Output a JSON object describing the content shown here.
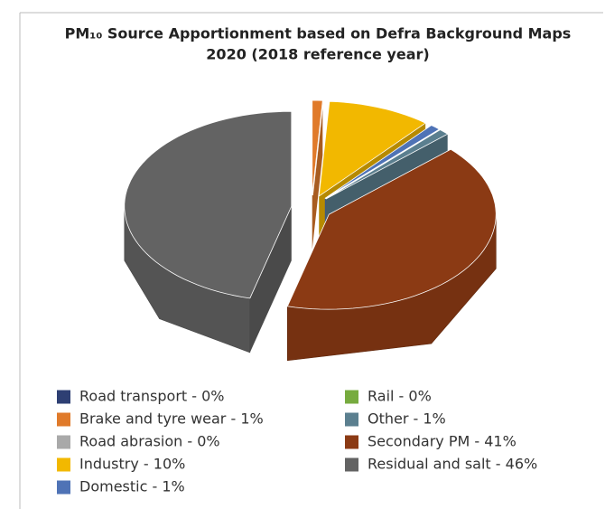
{
  "chart_data": {
    "type": "pie",
    "title": [
      "PM₁₀ Source Apportionment based on Defra Background Maps",
      "2020 (2018 reference year)"
    ],
    "categories": [
      "Road transport - 0%",
      "Brake and tyre wear - 1%",
      "Road abrasion - 0%",
      "Industry - 10%",
      "Domestic - 1%",
      "Rail - 0%",
      "Other - 1%",
      "Secondary PM - 41%",
      "Residual and salt - 46%"
    ],
    "values": [
      0,
      1,
      0,
      10,
      1,
      0,
      1,
      41,
      46
    ],
    "colors": [
      "#2e3f73",
      "#e07a2a",
      "#a9a9a9",
      "#f2b800",
      "#4f73b6",
      "#77ab3f",
      "#5b7f8f",
      "#8b3a14",
      "#636363"
    ]
  }
}
